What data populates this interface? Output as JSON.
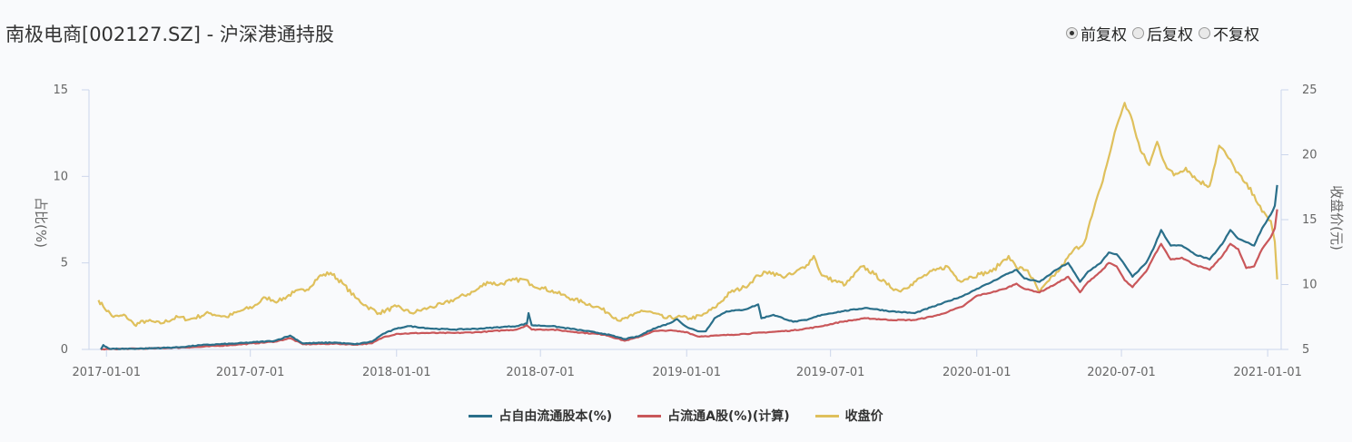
{
  "header": {
    "title": "南极电商[002127.SZ] - 沪深港通持股",
    "price_mode_options": [
      {
        "label": "前复权",
        "checked": true
      },
      {
        "label": "后复权",
        "checked": false
      },
      {
        "label": "不复权",
        "checked": false
      }
    ]
  },
  "chart_data": {
    "type": "line",
    "x_axis": {
      "type": "time",
      "ticks": [
        "2017-01-01",
        "2017-07-01",
        "2018-01-01",
        "2018-07-01",
        "2019-01-01",
        "2019-07-01",
        "2020-01-01",
        "2020-07-01",
        "2021-01-01"
      ],
      "range": [
        "2016-12-10",
        "2021-01-18"
      ]
    },
    "y_left": {
      "label": "占比(%)",
      "ticks": [
        0,
        5,
        10,
        15
      ],
      "range": [
        0,
        15
      ]
    },
    "y_right": {
      "label": "收盘价(元)",
      "ticks": [
        5,
        10,
        15,
        20,
        25
      ],
      "range": [
        5,
        25
      ]
    },
    "series": [
      {
        "name": "占自由流通股本(%)",
        "axis": "left",
        "color": "#2a6f8a",
        "points": [
          [
            "2016-12-25",
            0.0
          ],
          [
            "2016-12-28",
            0.25
          ],
          [
            "2017-01-05",
            0.03
          ],
          [
            "2017-02-15",
            0.05
          ],
          [
            "2017-04-01",
            0.12
          ],
          [
            "2017-05-01",
            0.25
          ],
          [
            "2017-06-15",
            0.35
          ],
          [
            "2017-08-01",
            0.5
          ],
          [
            "2017-08-20",
            0.8
          ],
          [
            "2017-09-05",
            0.35
          ],
          [
            "2017-10-15",
            0.4
          ],
          [
            "2017-11-10",
            0.3
          ],
          [
            "2017-12-01",
            0.45
          ],
          [
            "2017-12-15",
            0.9
          ],
          [
            "2018-01-01",
            1.2
          ],
          [
            "2018-01-15",
            1.35
          ],
          [
            "2018-02-15",
            1.2
          ],
          [
            "2018-03-15",
            1.15
          ],
          [
            "2018-04-15",
            1.2
          ],
          [
            "2018-05-15",
            1.3
          ],
          [
            "2018-06-01",
            1.35
          ],
          [
            "2018-06-14",
            1.5
          ],
          [
            "2018-06-16",
            2.1
          ],
          [
            "2018-06-20",
            1.4
          ],
          [
            "2018-07-15",
            1.35
          ],
          [
            "2018-08-15",
            1.15
          ],
          [
            "2018-09-20",
            0.9
          ],
          [
            "2018-10-15",
            0.6
          ],
          [
            "2018-11-01",
            0.75
          ],
          [
            "2018-11-20",
            1.2
          ],
          [
            "2018-12-10",
            1.5
          ],
          [
            "2018-12-20",
            1.75
          ],
          [
            "2019-01-01",
            1.3
          ],
          [
            "2019-01-15",
            1.05
          ],
          [
            "2019-01-25",
            1.05
          ],
          [
            "2019-02-05",
            1.8
          ],
          [
            "2019-02-20",
            2.2
          ],
          [
            "2019-03-15",
            2.3
          ],
          [
            "2019-04-01",
            2.6
          ],
          [
            "2019-04-05",
            1.8
          ],
          [
            "2019-04-20",
            2.0
          ],
          [
            "2019-05-15",
            1.6
          ],
          [
            "2019-06-01",
            1.7
          ],
          [
            "2019-06-20",
            2.0
          ],
          [
            "2019-07-15",
            2.2
          ],
          [
            "2019-08-15",
            2.4
          ],
          [
            "2019-09-15",
            2.2
          ],
          [
            "2019-10-15",
            2.1
          ],
          [
            "2019-11-15",
            2.6
          ],
          [
            "2019-12-15",
            3.1
          ],
          [
            "2020-01-01",
            3.5
          ],
          [
            "2020-01-20",
            3.9
          ],
          [
            "2020-02-05",
            4.3
          ],
          [
            "2020-02-20",
            4.6
          ],
          [
            "2020-03-01",
            4.1
          ],
          [
            "2020-03-20",
            3.9
          ],
          [
            "2020-04-10",
            4.6
          ],
          [
            "2020-04-25",
            5.0
          ],
          [
            "2020-05-10",
            3.9
          ],
          [
            "2020-05-20",
            4.5
          ],
          [
            "2020-06-05",
            5.0
          ],
          [
            "2020-06-15",
            5.6
          ],
          [
            "2020-06-25",
            5.5
          ],
          [
            "2020-07-05",
            4.9
          ],
          [
            "2020-07-15",
            4.2
          ],
          [
            "2020-08-01",
            5.0
          ],
          [
            "2020-08-10",
            5.8
          ],
          [
            "2020-08-20",
            6.9
          ],
          [
            "2020-09-01",
            6.0
          ],
          [
            "2020-09-15",
            6.0
          ],
          [
            "2020-10-01",
            5.5
          ],
          [
            "2020-10-20",
            5.2
          ],
          [
            "2020-11-05",
            6.1
          ],
          [
            "2020-11-15",
            6.9
          ],
          [
            "2020-11-25",
            6.4
          ],
          [
            "2020-12-05",
            6.2
          ],
          [
            "2020-12-15",
            6.0
          ],
          [
            "2020-12-25",
            7.0
          ],
          [
            "2021-01-05",
            7.8
          ],
          [
            "2021-01-10",
            8.3
          ],
          [
            "2021-01-13",
            9.5
          ]
        ]
      },
      {
        "name": "占流通A股(%)(计算)",
        "axis": "left",
        "color": "#c9575a",
        "points": [
          [
            "2016-12-25",
            0.0
          ],
          [
            "2017-01-05",
            0.02
          ],
          [
            "2017-03-01",
            0.06
          ],
          [
            "2017-05-01",
            0.15
          ],
          [
            "2017-06-15",
            0.28
          ],
          [
            "2017-08-01",
            0.45
          ],
          [
            "2017-08-20",
            0.65
          ],
          [
            "2017-09-05",
            0.3
          ],
          [
            "2017-10-15",
            0.33
          ],
          [
            "2017-11-10",
            0.28
          ],
          [
            "2017-12-01",
            0.35
          ],
          [
            "2017-12-15",
            0.7
          ],
          [
            "2018-01-01",
            0.9
          ],
          [
            "2018-02-01",
            0.95
          ],
          [
            "2018-03-15",
            0.95
          ],
          [
            "2018-04-15",
            1.0
          ],
          [
            "2018-05-15",
            1.1
          ],
          [
            "2018-06-01",
            1.15
          ],
          [
            "2018-06-14",
            1.4
          ],
          [
            "2018-06-20",
            1.15
          ],
          [
            "2018-07-15",
            1.15
          ],
          [
            "2018-08-15",
            1.0
          ],
          [
            "2018-09-20",
            0.85
          ],
          [
            "2018-10-15",
            0.5
          ],
          [
            "2018-11-01",
            0.7
          ],
          [
            "2018-11-20",
            1.05
          ],
          [
            "2018-12-10",
            1.1
          ],
          [
            "2019-01-01",
            1.0
          ],
          [
            "2019-01-15",
            0.75
          ],
          [
            "2019-02-10",
            0.8
          ],
          [
            "2019-03-15",
            0.9
          ],
          [
            "2019-04-15",
            1.0
          ],
          [
            "2019-05-15",
            1.1
          ],
          [
            "2019-06-15",
            1.3
          ],
          [
            "2019-07-15",
            1.6
          ],
          [
            "2019-08-15",
            1.8
          ],
          [
            "2019-09-15",
            1.7
          ],
          [
            "2019-10-15",
            1.7
          ],
          [
            "2019-11-15",
            2.0
          ],
          [
            "2019-12-15",
            2.5
          ],
          [
            "2020-01-01",
            3.1
          ],
          [
            "2020-01-20",
            3.3
          ],
          [
            "2020-02-05",
            3.5
          ],
          [
            "2020-02-20",
            3.8
          ],
          [
            "2020-03-01",
            3.5
          ],
          [
            "2020-03-20",
            3.3
          ],
          [
            "2020-04-10",
            3.8
          ],
          [
            "2020-04-25",
            4.2
          ],
          [
            "2020-05-10",
            3.3
          ],
          [
            "2020-05-20",
            3.9
          ],
          [
            "2020-06-05",
            4.5
          ],
          [
            "2020-06-15",
            5.0
          ],
          [
            "2020-06-25",
            4.8
          ],
          [
            "2020-07-05",
            4.0
          ],
          [
            "2020-07-15",
            3.6
          ],
          [
            "2020-08-01",
            4.5
          ],
          [
            "2020-08-10",
            5.3
          ],
          [
            "2020-08-20",
            6.1
          ],
          [
            "2020-09-01",
            5.2
          ],
          [
            "2020-09-15",
            5.3
          ],
          [
            "2020-10-01",
            4.9
          ],
          [
            "2020-10-20",
            4.6
          ],
          [
            "2020-11-05",
            5.4
          ],
          [
            "2020-11-15",
            6.1
          ],
          [
            "2020-11-25",
            5.8
          ],
          [
            "2020-12-05",
            4.7
          ],
          [
            "2020-12-15",
            4.8
          ],
          [
            "2020-12-25",
            5.8
          ],
          [
            "2021-01-05",
            6.5
          ],
          [
            "2021-01-10",
            7.0
          ],
          [
            "2021-01-13",
            8.1
          ]
        ]
      },
      {
        "name": "收盘价",
        "axis": "right",
        "color": "#dfc05c",
        "points": [
          [
            "2016-12-22",
            8.8
          ],
          [
            "2016-12-28",
            8.3
          ],
          [
            "2017-01-10",
            7.5
          ],
          [
            "2017-01-25",
            7.6
          ],
          [
            "2017-02-05",
            6.9
          ],
          [
            "2017-02-20",
            7.2
          ],
          [
            "2017-03-10",
            7.0
          ],
          [
            "2017-04-01",
            7.5
          ],
          [
            "2017-04-15",
            7.3
          ],
          [
            "2017-05-10",
            7.8
          ],
          [
            "2017-06-01",
            7.5
          ],
          [
            "2017-06-20",
            8.0
          ],
          [
            "2017-07-05",
            8.3
          ],
          [
            "2017-07-20",
            9.0
          ],
          [
            "2017-08-05",
            8.7
          ],
          [
            "2017-08-25",
            9.4
          ],
          [
            "2017-09-10",
            9.6
          ],
          [
            "2017-09-25",
            10.6
          ],
          [
            "2017-10-10",
            10.9
          ],
          [
            "2017-10-25",
            10.1
          ],
          [
            "2017-11-10",
            9.0
          ],
          [
            "2017-11-25",
            8.3
          ],
          [
            "2017-12-10",
            7.8
          ],
          [
            "2018-01-01",
            8.3
          ],
          [
            "2018-01-20",
            7.8
          ],
          [
            "2018-02-10",
            8.2
          ],
          [
            "2018-03-01",
            8.5
          ],
          [
            "2018-03-20",
            9.0
          ],
          [
            "2018-04-10",
            9.5
          ],
          [
            "2018-04-25",
            10.2
          ],
          [
            "2018-05-10",
            10.0
          ],
          [
            "2018-05-25",
            10.3
          ],
          [
            "2018-06-10",
            10.4
          ],
          [
            "2018-06-20",
            10.0
          ],
          [
            "2018-07-05",
            9.7
          ],
          [
            "2018-07-20",
            9.4
          ],
          [
            "2018-08-10",
            8.9
          ],
          [
            "2018-08-25",
            8.6
          ],
          [
            "2018-09-10",
            8.3
          ],
          [
            "2018-09-25",
            7.8
          ],
          [
            "2018-10-10",
            7.2
          ],
          [
            "2018-10-25",
            7.6
          ],
          [
            "2018-11-05",
            8.0
          ],
          [
            "2018-11-20",
            7.8
          ],
          [
            "2018-12-05",
            7.4
          ],
          [
            "2018-12-20",
            7.5
          ],
          [
            "2019-01-05",
            7.4
          ],
          [
            "2019-01-20",
            7.6
          ],
          [
            "2019-02-05",
            8.2
          ],
          [
            "2019-02-25",
            9.4
          ],
          [
            "2019-03-15",
            9.8
          ],
          [
            "2019-04-01",
            10.7
          ],
          [
            "2019-04-15",
            11.0
          ],
          [
            "2019-05-01",
            10.6
          ],
          [
            "2019-05-15",
            10.8
          ],
          [
            "2019-06-01",
            11.5
          ],
          [
            "2019-06-10",
            12.2
          ],
          [
            "2019-06-20",
            10.7
          ],
          [
            "2019-07-05",
            10.3
          ],
          [
            "2019-07-20",
            10.0
          ],
          [
            "2019-08-10",
            11.4
          ],
          [
            "2019-08-25",
            10.8
          ],
          [
            "2019-09-10",
            10.0
          ],
          [
            "2019-09-25",
            9.5
          ],
          [
            "2019-10-10",
            10.0
          ],
          [
            "2019-10-25",
            10.6
          ],
          [
            "2019-11-10",
            11.1
          ],
          [
            "2019-11-25",
            11.4
          ],
          [
            "2019-12-10",
            10.3
          ],
          [
            "2019-12-25",
            10.6
          ],
          [
            "2020-01-05",
            10.8
          ],
          [
            "2020-01-20",
            11.0
          ],
          [
            "2020-02-01",
            11.7
          ],
          [
            "2020-02-10",
            12.2
          ],
          [
            "2020-02-20",
            11.3
          ],
          [
            "2020-03-05",
            11.1
          ],
          [
            "2020-03-20",
            9.4
          ],
          [
            "2020-04-01",
            10.3
          ],
          [
            "2020-04-15",
            11.2
          ],
          [
            "2020-05-01",
            12.6
          ],
          [
            "2020-05-15",
            13.2
          ],
          [
            "2020-05-25",
            15.3
          ],
          [
            "2020-06-05",
            17.5
          ],
          [
            "2020-06-15",
            19.8
          ],
          [
            "2020-06-25",
            22.2
          ],
          [
            "2020-07-05",
            24.0
          ],
          [
            "2020-07-15",
            22.6
          ],
          [
            "2020-07-25",
            20.3
          ],
          [
            "2020-08-05",
            19.2
          ],
          [
            "2020-08-15",
            21.0
          ],
          [
            "2020-08-25",
            19.3
          ],
          [
            "2020-09-05",
            18.4
          ],
          [
            "2020-09-20",
            19.0
          ],
          [
            "2020-10-05",
            18.0
          ],
          [
            "2020-10-20",
            17.6
          ],
          [
            "2020-11-01",
            20.7
          ],
          [
            "2020-11-10",
            20.0
          ],
          [
            "2020-11-20",
            19.0
          ],
          [
            "2020-12-01",
            18.0
          ],
          [
            "2020-12-15",
            16.9
          ],
          [
            "2020-12-25",
            15.6
          ],
          [
            "2021-01-05",
            14.9
          ],
          [
            "2021-01-10",
            13.3
          ],
          [
            "2021-01-13",
            10.4
          ]
        ]
      }
    ],
    "legend_position": "bottom",
    "grid": false
  }
}
